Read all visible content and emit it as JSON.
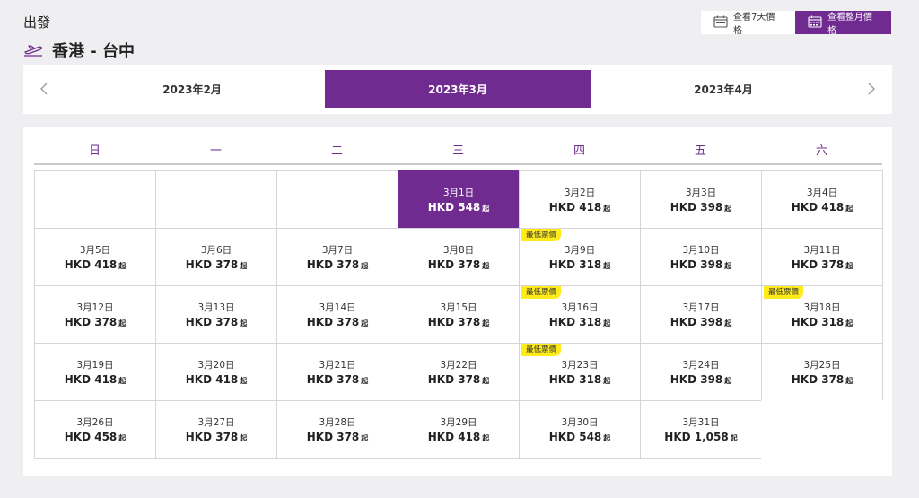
{
  "header": {
    "departure_label": "出發",
    "route": "香港 - 台中"
  },
  "view_buttons": {
    "week": "查看7天價格",
    "month": "查看整月價格"
  },
  "months": {
    "prev": "2023年2月",
    "current": "2023年3月",
    "next": "2023年4月"
  },
  "weekdays": [
    "日",
    "一",
    "二",
    "三",
    "四",
    "五",
    "六"
  ],
  "lowest_badge": "最低票價",
  "from_suffix": "起",
  "colors": {
    "accent": "#6f2b90",
    "badge": "#ffeb1a"
  },
  "days": [
    {
      "date": "3月1日",
      "price": "HKD 548",
      "selected": true
    },
    {
      "date": "3月2日",
      "price": "HKD 418"
    },
    {
      "date": "3月3日",
      "price": "HKD 398"
    },
    {
      "date": "3月4日",
      "price": "HKD 418"
    },
    {
      "date": "3月5日",
      "price": "HKD 418"
    },
    {
      "date": "3月6日",
      "price": "HKD 378"
    },
    {
      "date": "3月7日",
      "price": "HKD 378"
    },
    {
      "date": "3月8日",
      "price": "HKD 378"
    },
    {
      "date": "3月9日",
      "price": "HKD 318",
      "lowest": true
    },
    {
      "date": "3月10日",
      "price": "HKD 398"
    },
    {
      "date": "3月11日",
      "price": "HKD 378"
    },
    {
      "date": "3月12日",
      "price": "HKD 378"
    },
    {
      "date": "3月13日",
      "price": "HKD 378"
    },
    {
      "date": "3月14日",
      "price": "HKD 378"
    },
    {
      "date": "3月15日",
      "price": "HKD 378"
    },
    {
      "date": "3月16日",
      "price": "HKD 318",
      "lowest": true
    },
    {
      "date": "3月17日",
      "price": "HKD 398"
    },
    {
      "date": "3月18日",
      "price": "HKD 318",
      "lowest": true
    },
    {
      "date": "3月19日",
      "price": "HKD 418"
    },
    {
      "date": "3月20日",
      "price": "HKD 418"
    },
    {
      "date": "3月21日",
      "price": "HKD 378"
    },
    {
      "date": "3月22日",
      "price": "HKD 378"
    },
    {
      "date": "3月23日",
      "price": "HKD 318",
      "lowest": true
    },
    {
      "date": "3月24日",
      "price": "HKD 398"
    },
    {
      "date": "3月25日",
      "price": "HKD 378"
    },
    {
      "date": "3月26日",
      "price": "HKD 458"
    },
    {
      "date": "3月27日",
      "price": "HKD 378"
    },
    {
      "date": "3月28日",
      "price": "HKD 378"
    },
    {
      "date": "3月29日",
      "price": "HKD 418"
    },
    {
      "date": "3月30日",
      "price": "HKD 548"
    },
    {
      "date": "3月31日",
      "price": "HKD 1,058"
    }
  ]
}
